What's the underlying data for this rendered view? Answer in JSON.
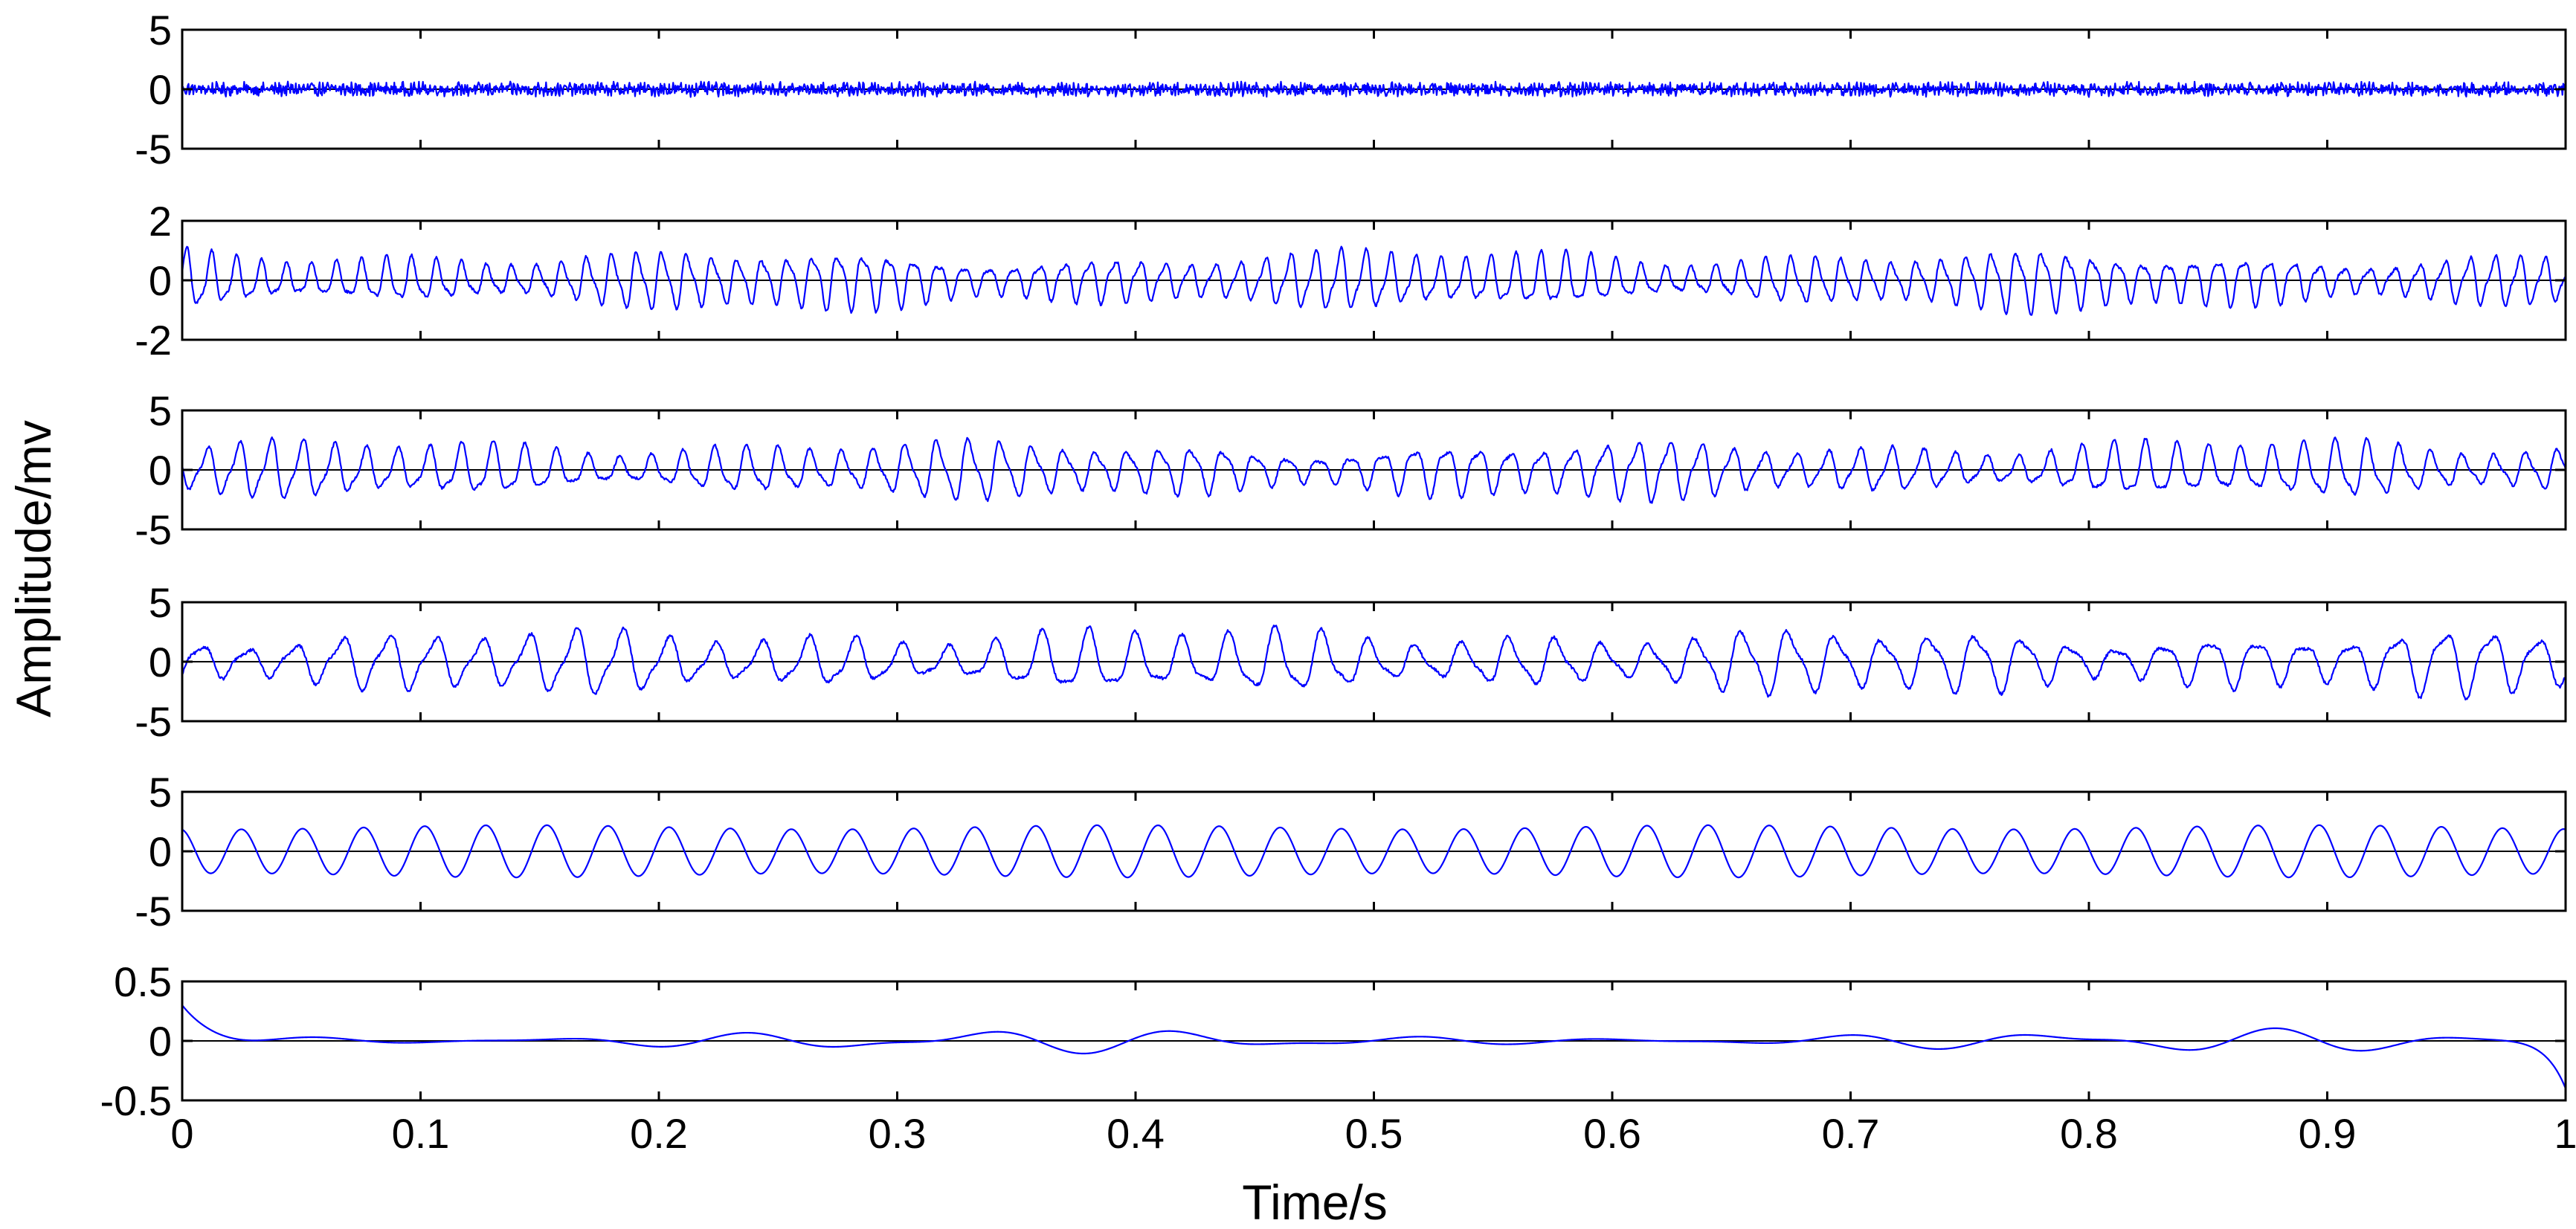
{
  "chart_data": {
    "type": "line",
    "xlabel": "Time/s",
    "ylabel": "Amplitude/mv",
    "xlim": [
      0,
      1
    ],
    "xticks": [
      "0",
      "0.1",
      "0.2",
      "0.3",
      "0.4",
      "0.5",
      "0.6",
      "0.7",
      "0.8",
      "0.9",
      "1"
    ],
    "line_color": "#0000ff",
    "grid": false,
    "panels": [
      {
        "ylim": [
          -5,
          5
        ],
        "yticks": [
          "-5",
          "0",
          "5"
        ],
        "signal": {
          "kind": "noise",
          "amplitude": 0.6,
          "dominant_cycles": 0
        }
      },
      {
        "ylim": [
          -2,
          2
        ],
        "yticks": [
          "-2",
          "0",
          "2"
        ],
        "signal": {
          "kind": "oscillation",
          "amplitude": 1.1,
          "dominant_cycles": 95
        }
      },
      {
        "ylim": [
          -5,
          5
        ],
        "yticks": [
          "-5",
          "0",
          "5"
        ],
        "signal": {
          "kind": "oscillation",
          "amplitude": 2.7,
          "dominant_cycles": 75
        }
      },
      {
        "ylim": [
          -5,
          5
        ],
        "yticks": [
          "-5",
          "0",
          "5"
        ],
        "signal": {
          "kind": "oscillation",
          "amplitude": 3.0,
          "dominant_cycles": 51
        }
      },
      {
        "ylim": [
          -5,
          5
        ],
        "yticks": [
          "-5",
          "0",
          "5"
        ],
        "signal": {
          "kind": "sinusoid",
          "amplitude": 2.2,
          "dominant_cycles": 39
        }
      },
      {
        "ylim": [
          -0.5,
          0.5
        ],
        "yticks": [
          "-0.5",
          "0",
          "0.5"
        ],
        "signal": {
          "kind": "residual",
          "amplitude": 0.1,
          "start": 0.3,
          "end": -0.4
        }
      }
    ]
  }
}
